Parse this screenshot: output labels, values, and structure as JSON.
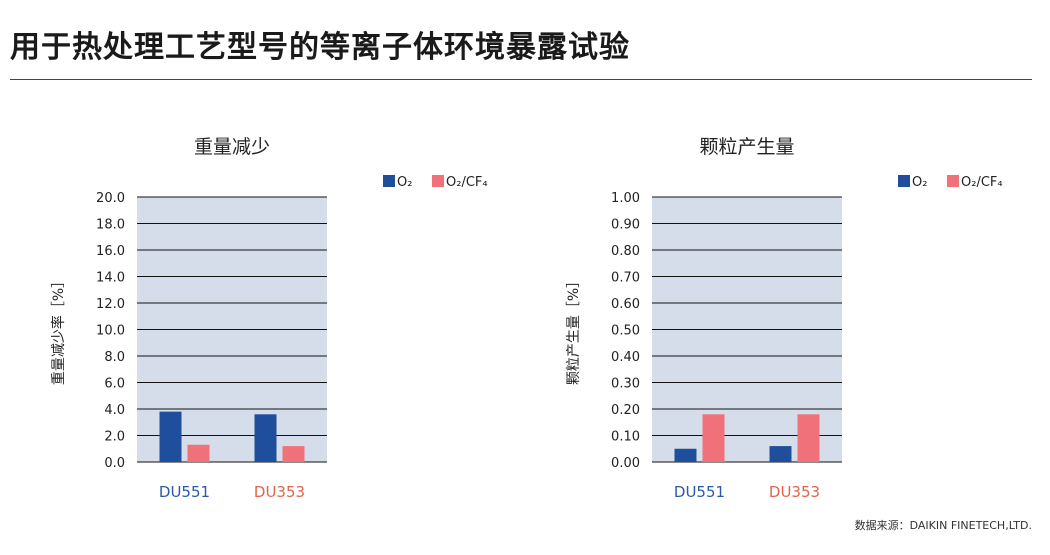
{
  "page": {
    "title": "用于热处理工艺型号的等离子体环境暴露试验",
    "source": "数据来源：DAIKIN FINETECH,LTD."
  },
  "colors": {
    "o2": "#1f4e9c",
    "o2cf4": "#f0717a",
    "plot_bg": "#d5ddea",
    "du551_label": "#2a5aa8",
    "du353_label": "#e0654a"
  },
  "chart_data": [
    {
      "type": "bar",
      "title": "重量减少",
      "ylabel": "重量减少率［%］",
      "categories": [
        "DU551",
        "DU353"
      ],
      "series": [
        {
          "name": "O₂",
          "values": [
            3.8,
            3.6
          ]
        },
        {
          "name": "O₂/CF₄",
          "values": [
            1.3,
            1.2
          ]
        }
      ],
      "ylim": [
        0,
        20
      ],
      "yticks": [
        "0.0",
        "2.0",
        "4.0",
        "6.0",
        "8.0",
        "10.0",
        "12.0",
        "14.0",
        "16.0",
        "18.0",
        "20.0"
      ],
      "grid": true,
      "legend": "top-right"
    },
    {
      "type": "bar",
      "title": "颗粒产生量",
      "ylabel": "颗粒产生量［%］",
      "categories": [
        "DU551",
        "DU353"
      ],
      "series": [
        {
          "name": "O₂",
          "values": [
            0.05,
            0.06
          ]
        },
        {
          "name": "O₂/CF₄",
          "values": [
            0.18,
            0.18
          ]
        }
      ],
      "ylim": [
        0,
        1
      ],
      "yticks": [
        "0.00",
        "0.10",
        "0.20",
        "0.30",
        "0.40",
        "0.50",
        "0.60",
        "0.70",
        "0.80",
        "0.90",
        "1.00"
      ],
      "grid": true,
      "legend": "top-right"
    }
  ]
}
